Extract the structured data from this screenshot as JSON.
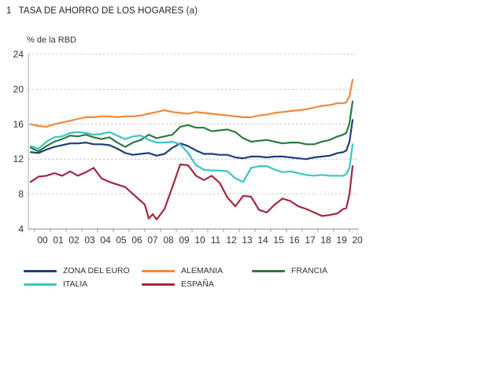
{
  "header": {
    "number": "1",
    "title": "TASA DE AHORRO DE LOS HOGARES",
    "suffix": "(a)",
    "units": "%  de la RBD"
  },
  "legend": {
    "items": [
      {
        "label": "ZONA DEL EURO",
        "color": "#1f3f7a"
      },
      {
        "label": "ALEMANIA",
        "color": "#ee8a3c"
      },
      {
        "label": "FRANCIA",
        "color": "#2e7a3e"
      },
      {
        "label": "ITALIA",
        "color": "#3cc4c4"
      },
      {
        "label": "ESPAÑA",
        "color": "#a3283d"
      }
    ]
  },
  "chart_data": {
    "type": "line",
    "title": "TASA DE AHORRO DE LOS HOGARES",
    "ylabel": "%  de la RBD",
    "xlabel": "",
    "ylim": [
      4,
      24
    ],
    "yticks": [
      4,
      8,
      12,
      16,
      20,
      24
    ],
    "xlim": [
      1999.6,
      2020.6
    ],
    "xticks": [
      "00",
      "01",
      "02",
      "03",
      "04",
      "05",
      "06",
      "07",
      "08",
      "09",
      "10",
      "11",
      "12",
      "13",
      "14",
      "15",
      "16",
      "17",
      "18",
      "19",
      "20"
    ],
    "grid": "horizontal-dashed",
    "legend_position": "bottom",
    "series": [
      {
        "name": "ZONA DEL EURO",
        "color": "#1f3f7a",
        "x": [
          1999.75,
          2000.25,
          2000.75,
          2001.25,
          2001.75,
          2002.25,
          2002.75,
          2003.25,
          2003.75,
          2004.25,
          2004.75,
          2005.25,
          2005.75,
          2006.25,
          2006.75,
          2007.25,
          2007.75,
          2008.25,
          2008.75,
          2009.25,
          2009.75,
          2010.25,
          2010.75,
          2011.25,
          2011.75,
          2012.25,
          2012.75,
          2013.25,
          2013.75,
          2014.25,
          2014.75,
          2015.25,
          2015.75,
          2016.25,
          2016.75,
          2017.25,
          2017.75,
          2018.25,
          2018.75,
          2019.25,
          2019.6,
          2019.8,
          2020.0,
          2020.2
        ],
        "y": [
          12.8,
          12.7,
          13.1,
          13.4,
          13.6,
          13.8,
          13.8,
          13.9,
          13.7,
          13.7,
          13.6,
          13.2,
          12.7,
          12.5,
          12.6,
          12.7,
          12.4,
          12.6,
          13.3,
          13.8,
          13.5,
          13.0,
          12.6,
          12.6,
          12.5,
          12.5,
          12.2,
          12.1,
          12.3,
          12.3,
          12.2,
          12.3,
          12.3,
          12.2,
          12.1,
          12.0,
          12.2,
          12.3,
          12.4,
          12.7,
          12.8,
          13.0,
          14.0,
          16.5
        ]
      },
      {
        "name": "ALEMANIA",
        "color": "#ee8a3c",
        "x": [
          1999.75,
          2000.25,
          2000.75,
          2001.25,
          2001.75,
          2002.25,
          2002.75,
          2003.25,
          2003.75,
          2004.25,
          2004.75,
          2005.25,
          2005.75,
          2006.25,
          2006.75,
          2007.25,
          2007.75,
          2008.25,
          2008.75,
          2009.25,
          2009.75,
          2010.25,
          2010.75,
          2011.25,
          2011.75,
          2012.25,
          2012.75,
          2013.25,
          2013.75,
          2014.25,
          2014.75,
          2015.25,
          2015.75,
          2016.25,
          2016.75,
          2017.25,
          2017.75,
          2018.25,
          2018.75,
          2019.25,
          2019.6,
          2019.8,
          2020.0,
          2020.2
        ],
        "y": [
          16.0,
          15.8,
          15.7,
          16.0,
          16.2,
          16.4,
          16.6,
          16.8,
          16.8,
          16.9,
          16.9,
          16.8,
          16.9,
          16.9,
          17.0,
          17.2,
          17.4,
          17.6,
          17.4,
          17.3,
          17.2,
          17.4,
          17.3,
          17.2,
          17.1,
          17.0,
          16.9,
          16.8,
          16.8,
          17.0,
          17.1,
          17.3,
          17.4,
          17.5,
          17.6,
          17.7,
          17.9,
          18.1,
          18.2,
          18.4,
          18.4,
          18.5,
          19.2,
          21.1
        ]
      },
      {
        "name": "FRANCIA",
        "color": "#2e7a3e",
        "x": [
          1999.75,
          2000.25,
          2000.75,
          2001.25,
          2001.75,
          2002.25,
          2002.75,
          2003.25,
          2003.75,
          2004.25,
          2004.75,
          2005.25,
          2005.75,
          2006.25,
          2006.75,
          2007.25,
          2007.75,
          2008.25,
          2008.75,
          2009.25,
          2009.75,
          2010.25,
          2010.75,
          2011.25,
          2011.75,
          2012.25,
          2012.75,
          2013.25,
          2013.75,
          2014.25,
          2014.75,
          2015.25,
          2015.75,
          2016.25,
          2016.75,
          2017.25,
          2017.75,
          2018.25,
          2018.75,
          2019.25,
          2019.6,
          2019.8,
          2020.0,
          2020.2
        ],
        "y": [
          13.3,
          12.9,
          13.5,
          14.0,
          14.3,
          14.7,
          14.6,
          14.8,
          14.5,
          14.3,
          14.5,
          13.9,
          13.4,
          13.9,
          14.2,
          14.8,
          14.4,
          14.6,
          14.8,
          15.7,
          15.9,
          15.6,
          15.6,
          15.2,
          15.3,
          15.4,
          15.1,
          14.4,
          14.0,
          14.1,
          14.2,
          14.0,
          13.8,
          13.9,
          13.9,
          13.7,
          13.7,
          14.0,
          14.2,
          14.6,
          14.8,
          15.0,
          16.1,
          18.6
        ]
      },
      {
        "name": "ITALIA",
        "color": "#3cc4c4",
        "x": [
          1999.75,
          2000.25,
          2000.75,
          2001.25,
          2001.75,
          2002.25,
          2002.75,
          2003.25,
          2003.75,
          2004.25,
          2004.75,
          2005.25,
          2005.75,
          2006.25,
          2006.75,
          2007.25,
          2007.75,
          2008.25,
          2008.75,
          2009.25,
          2009.75,
          2010.25,
          2010.75,
          2011.25,
          2011.75,
          2012.25,
          2012.75,
          2013.25,
          2013.75,
          2014.25,
          2014.75,
          2015.25,
          2015.75,
          2016.25,
          2016.75,
          2017.25,
          2017.75,
          2018.25,
          2018.75,
          2019.25,
          2019.6,
          2019.8,
          2020.0,
          2020.2
        ],
        "y": [
          13.5,
          13.2,
          14.0,
          14.5,
          14.6,
          15.0,
          15.1,
          15.0,
          14.8,
          14.9,
          15.1,
          14.7,
          14.3,
          14.6,
          14.7,
          14.2,
          13.9,
          13.9,
          14.0,
          13.7,
          12.7,
          11.3,
          10.8,
          10.7,
          10.7,
          10.6,
          9.8,
          9.4,
          11.0,
          11.2,
          11.2,
          10.8,
          10.5,
          10.6,
          10.4,
          10.2,
          10.1,
          10.2,
          10.1,
          10.1,
          10.1,
          10.3,
          11.0,
          13.7
        ]
      },
      {
        "name": "ESPAÑA",
        "color": "#a3283d",
        "x": [
          1999.75,
          2000.25,
          2000.75,
          2001.25,
          2001.75,
          2002.25,
          2002.75,
          2003.25,
          2003.75,
          2004.25,
          2004.75,
          2005.25,
          2005.75,
          2006.25,
          2006.75,
          2007.0,
          2007.25,
          2007.5,
          2007.75,
          2008.25,
          2008.75,
          2009.25,
          2009.75,
          2010.25,
          2010.75,
          2011.25,
          2011.75,
          2012.25,
          2012.75,
          2013.25,
          2013.75,
          2014.25,
          2014.75,
          2015.25,
          2015.75,
          2016.25,
          2016.75,
          2017.25,
          2017.75,
          2018.25,
          2018.75,
          2019.25,
          2019.6,
          2019.8,
          2020.0,
          2020.2
        ],
        "y": [
          9.4,
          10.0,
          10.1,
          10.4,
          10.1,
          10.6,
          10.1,
          10.5,
          11.0,
          9.8,
          9.4,
          9.1,
          8.8,
          8.0,
          7.2,
          6.8,
          5.2,
          5.7,
          5.1,
          6.3,
          8.8,
          11.4,
          11.3,
          10.1,
          9.6,
          10.1,
          9.3,
          7.6,
          6.6,
          7.8,
          7.7,
          6.2,
          5.9,
          6.8,
          7.5,
          7.2,
          6.6,
          6.3,
          5.9,
          5.5,
          5.6,
          5.8,
          6.3,
          6.4,
          8.0,
          11.2
        ]
      }
    ]
  }
}
